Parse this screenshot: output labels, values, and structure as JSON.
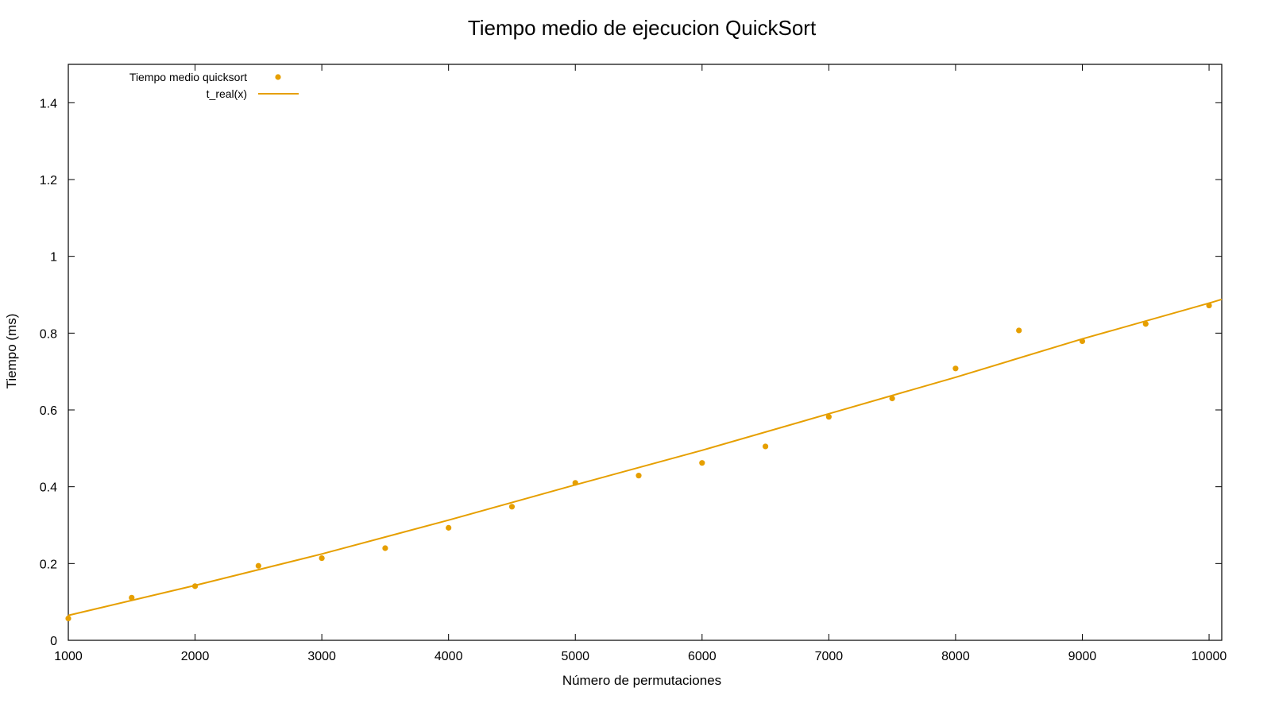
{
  "chart_data": {
    "type": "scatter",
    "title": "Tiempo medio de ejecucion QuickSort",
    "xlabel": "Número de permutaciones",
    "ylabel": "Tiempo (ms)",
    "xlim": [
      1000,
      10100
    ],
    "ylim": [
      0,
      1.5
    ],
    "xticks": [
      1000,
      2000,
      3000,
      4000,
      5000,
      6000,
      7000,
      8000,
      9000,
      10000
    ],
    "yticks": [
      0,
      0.2,
      0.4,
      0.6,
      0.8,
      1.0,
      1.2,
      1.4
    ],
    "ytick_labels": [
      "0",
      "0.2",
      "0.4",
      "0.6",
      "0.8",
      "1",
      "1.2",
      "1.4"
    ],
    "grid": false,
    "legend_position": "top-left",
    "color": "#e69f00",
    "series": [
      {
        "name": "Tiempo medio quicksort",
        "kind": "points",
        "x": [
          1000,
          1500,
          2000,
          2500,
          3000,
          3500,
          4000,
          4500,
          5000,
          5500,
          6000,
          6500,
          7000,
          7500,
          8000,
          8500,
          9000,
          9500,
          10000
        ],
        "y": [
          0.057,
          0.111,
          0.141,
          0.194,
          0.214,
          0.24,
          0.293,
          0.348,
          0.41,
          0.429,
          0.462,
          0.505,
          0.582,
          0.63,
          0.708,
          0.807,
          0.779,
          0.824,
          0.872
        ]
      },
      {
        "name": "t_real(x)",
        "kind": "line",
        "x": [
          1000,
          2000,
          3000,
          4000,
          5000,
          6000,
          7000,
          8000,
          9000,
          10000,
          10100
        ],
        "y": [
          0.065,
          0.143,
          0.225,
          0.313,
          0.405,
          0.495,
          0.59,
          0.685,
          0.785,
          0.878,
          0.888
        ]
      }
    ]
  }
}
